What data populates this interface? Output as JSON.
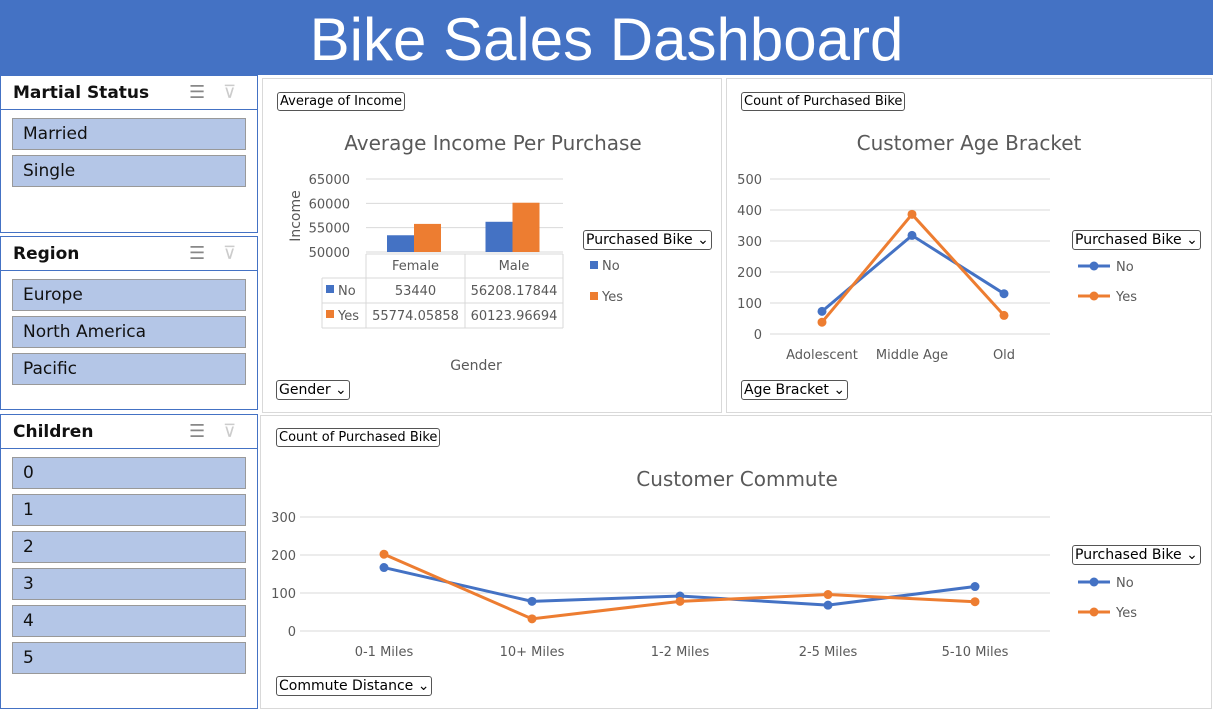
{
  "title": "Bike Sales Dashboard",
  "slicers": [
    {
      "title": "Martial Status",
      "items": [
        "Married",
        "Single"
      ]
    },
    {
      "title": "Region",
      "items": [
        "Europe",
        "North America",
        "Pacific"
      ]
    },
    {
      "title": "Children",
      "items": [
        "0",
        "1",
        "2",
        "3",
        "4",
        "5"
      ]
    }
  ],
  "colors": {
    "header": "#4472C4",
    "no": "#4472C4",
    "yes": "#ED7D31",
    "slicer_item": "#B4C6E7"
  },
  "field_buttons": {
    "income_value": "Average of Income",
    "age_value": "Count of Purchased Bike",
    "commute_value": "Count of Purchased Bike",
    "legend": "Purchased Bike ⌄",
    "gender": "Gender ⌄",
    "age_axis": "Age Bracket ⌄",
    "commute_axis": "Commute Distance ⌄"
  },
  "chart_data": [
    {
      "type": "bar",
      "title": "Average Income Per Purchase",
      "xlabel": "Gender",
      "ylabel": "Income",
      "ylim": [
        50000,
        65000
      ],
      "yticks": [
        "50000",
        "55000",
        "60000",
        "65000"
      ],
      "categories": [
        "Female",
        "Male"
      ],
      "series": [
        {
          "name": "No",
          "values": [
            53440,
            56208.17844
          ],
          "labels": [
            "53440",
            "56208.17844"
          ]
        },
        {
          "name": "Yes",
          "values": [
            55774.05858,
            60123.96694
          ],
          "labels": [
            "55774.05858",
            "60123.96694"
          ]
        }
      ],
      "legend": "right",
      "grid": true
    },
    {
      "type": "line",
      "title": "Customer Age Bracket",
      "ylim": [
        0,
        500
      ],
      "yticks": [
        "0",
        "100",
        "200",
        "300",
        "400",
        "500"
      ],
      "categories": [
        "Adolescent",
        "Middle Age",
        "Old"
      ],
      "series": [
        {
          "name": "No",
          "values": [
            73,
            318,
            130
          ]
        },
        {
          "name": "Yes",
          "values": [
            38,
            386,
            60
          ]
        }
      ],
      "legend": "right",
      "grid": true
    },
    {
      "type": "line",
      "title": "Customer Commute",
      "ylim": [
        0,
        300
      ],
      "yticks": [
        "0",
        "100",
        "200",
        "300"
      ],
      "categories": [
        "0-1 Miles",
        "10+ Miles",
        "1-2 Miles",
        "2-5 Miles",
        "5-10 Miles"
      ],
      "series": [
        {
          "name": "No",
          "values": [
            167,
            78,
            92,
            68,
            117
          ]
        },
        {
          "name": "Yes",
          "values": [
            202,
            32,
            78,
            96,
            77
          ]
        }
      ],
      "legend": "right",
      "grid": true
    }
  ]
}
